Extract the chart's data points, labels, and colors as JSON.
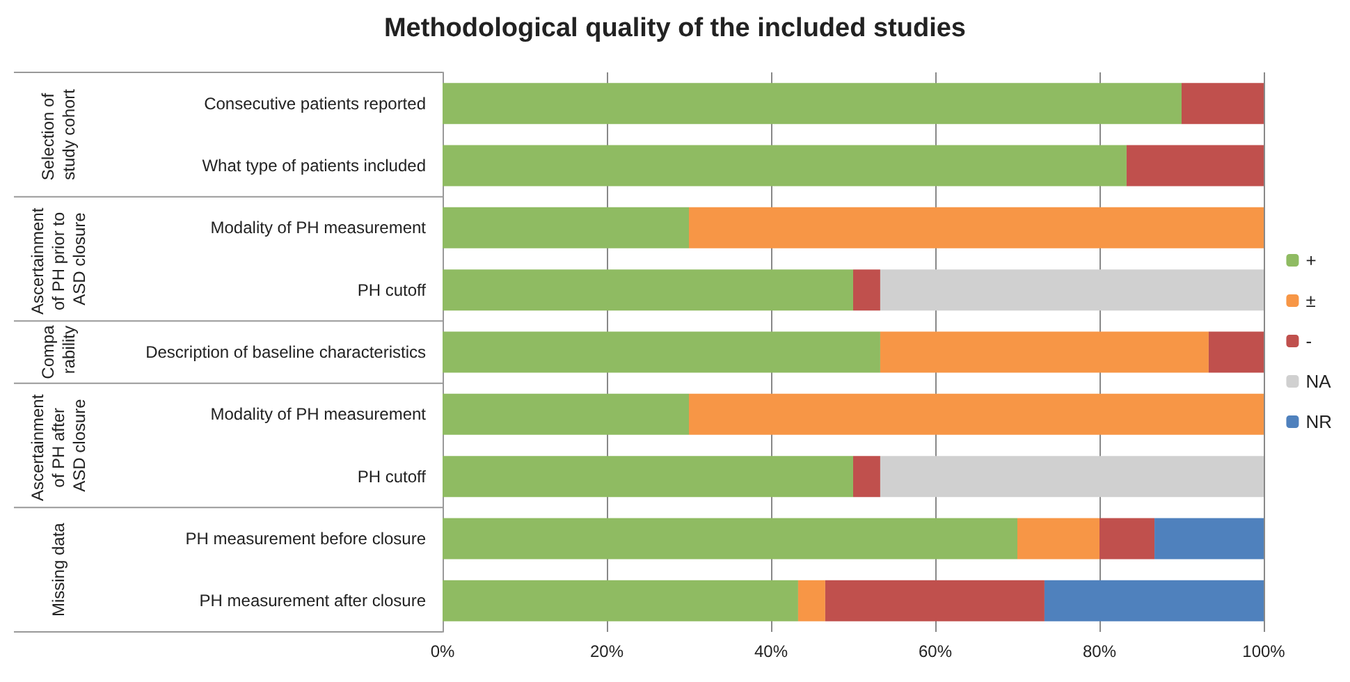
{
  "chart_data": {
    "type": "bar",
    "orientation": "horizontal",
    "stacked": true,
    "title": "Methodological quality of the included studies",
    "categories": [
      "Consecutive patients reported",
      "What type of patients included",
      "Modality of PH measurement",
      "PH cutoff",
      "Description of baseline characteristics",
      "Modality of PH measurement",
      "PH cutoff",
      "PH measurement before closure",
      "PH measurement after closure"
    ],
    "series": [
      {
        "name": "+",
        "color": "#8fbb62",
        "values": [
          90,
          83.3,
          30,
          50,
          53.3,
          30,
          50,
          70,
          43.3
        ]
      },
      {
        "name": "±",
        "color": "#f79646",
        "values": [
          null,
          null,
          70,
          null,
          40,
          70,
          null,
          10,
          3.3
        ]
      },
      {
        "name": "-",
        "color": "#c0504d",
        "values": [
          10,
          16.7,
          null,
          3.3,
          6.7,
          null,
          3.3,
          6.7,
          26.7
        ]
      },
      {
        "name": "NA",
        "color": "#d0d0d0",
        "values": [
          null,
          null,
          null,
          46.7,
          null,
          null,
          46.7,
          null,
          null
        ]
      },
      {
        "name": "NR",
        "color": "#4f81bd",
        "values": [
          null,
          null,
          null,
          null,
          null,
          null,
          null,
          13.3,
          26.7
        ]
      }
    ],
    "annotations": [
      "Selection of study cohort",
      "Ascertainment of PH prior to ASD closure",
      "Compa rability",
      "Ascertainment of PH after ASD closure",
      "Missing data"
    ],
    "xlim": [
      0,
      100
    ],
    "xticks": [
      {
        "value": 0,
        "label": "0%"
      },
      {
        "value": 20,
        "label": "20%"
      },
      {
        "value": 40,
        "label": "40%"
      },
      {
        "value": 60,
        "label": "60%"
      },
      {
        "value": 80,
        "label": "80%"
      },
      {
        "value": 100,
        "label": "100%"
      }
    ],
    "grid": "x",
    "legend": "right"
  }
}
